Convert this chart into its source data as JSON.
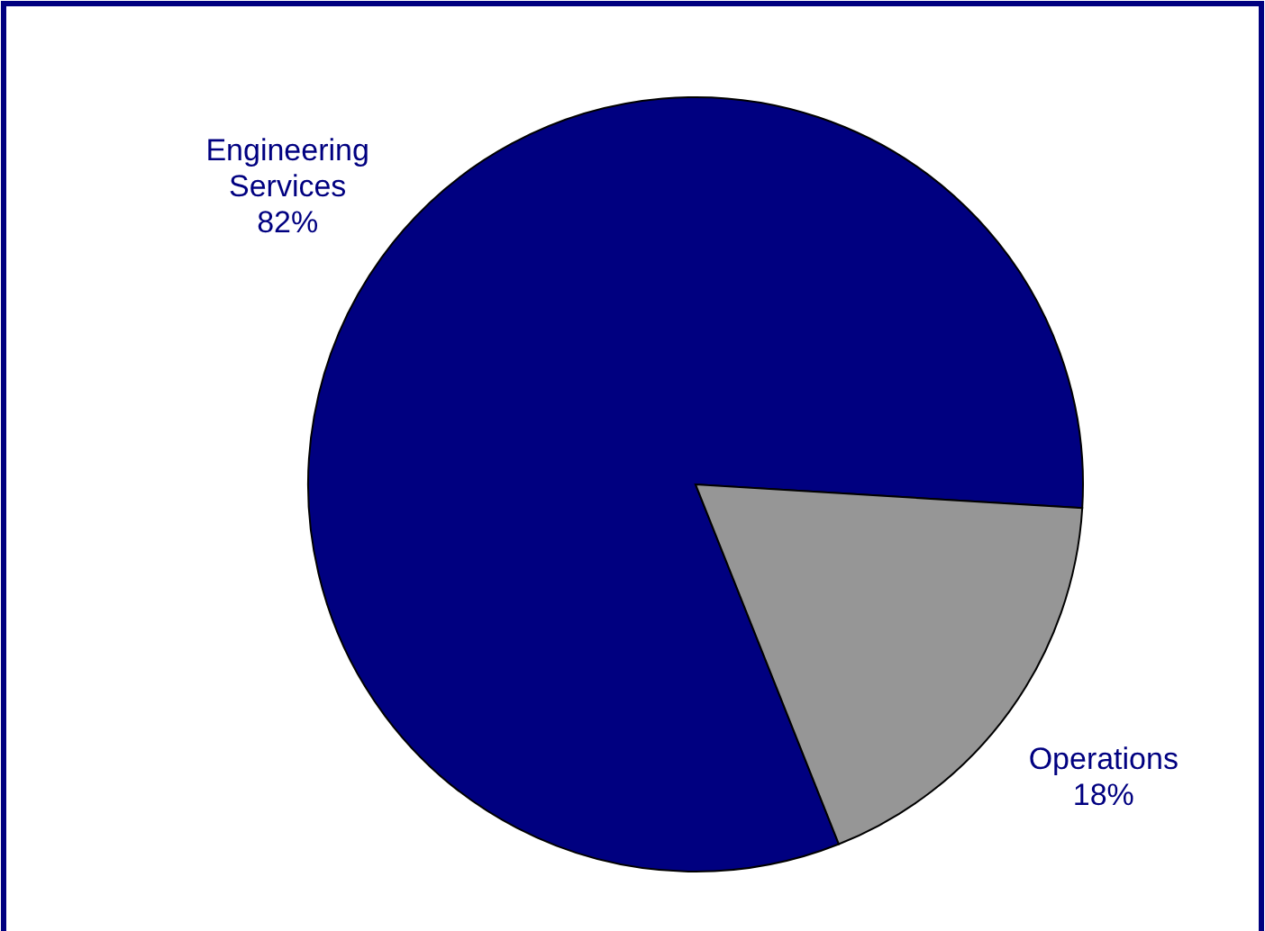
{
  "chart_data": {
    "type": "pie",
    "categories": [
      "Engineering Services",
      "Operations"
    ],
    "values": [
      82,
      18
    ],
    "colors": [
      "#000080",
      "#969696"
    ],
    "value_labels": [
      "82%",
      "18%"
    ]
  }
}
